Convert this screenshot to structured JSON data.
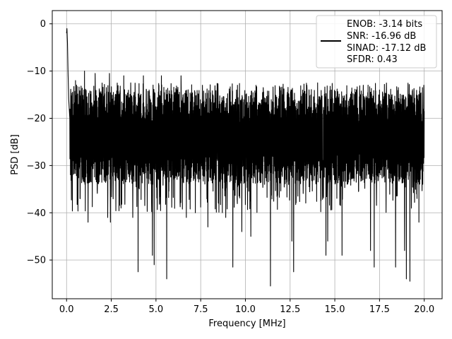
{
  "chart_data": {
    "type": "line",
    "xlabel": "Frequency [MHz]",
    "ylabel": "PSD [dB]",
    "xlim": [
      -0.8,
      21.0
    ],
    "ylim": [
      -58.2,
      2.8
    ],
    "xticks": [
      0.0,
      2.5,
      5.0,
      7.5,
      10.0,
      12.5,
      15.0,
      17.5,
      20.0
    ],
    "xtick_labels": [
      "0.0",
      "2.5",
      "5.0",
      "7.5",
      "10.0",
      "12.5",
      "15.0",
      "17.5",
      "20.0"
    ],
    "yticks": [
      0,
      -10,
      -20,
      -30,
      -40,
      -50
    ],
    "ytick_labels": [
      "0",
      "−10",
      "−20",
      "−30",
      "−40",
      "−50"
    ],
    "grid": true,
    "legend_position": "top-right",
    "legend_entries": [
      "ENOB: -3.14 bits",
      "SNR: -16.96 dB",
      "SINAD: -17.12 dB",
      "SFDR: 0.43"
    ],
    "series": [
      {
        "color": "#000000",
        "x_range": [
          0.0,
          20.0
        ],
        "start": [
          [
            0.0,
            -2.0
          ],
          [
            0.02,
            -1.0
          ],
          [
            0.05,
            -4.0
          ],
          [
            0.08,
            -10.0
          ],
          [
            0.12,
            -16.0
          ],
          [
            0.18,
            -20.0
          ]
        ],
        "typical_band": [
          -34,
          -14
        ],
        "upper_envelope": -12,
        "dips": [
          [
            0.2,
            -27
          ],
          [
            0.75,
            -37
          ],
          [
            1.2,
            -42
          ],
          [
            2.3,
            -41
          ],
          [
            2.45,
            -42
          ],
          [
            3.05,
            -39
          ],
          [
            3.7,
            -41
          ],
          [
            4.0,
            -52.5
          ],
          [
            4.8,
            -49
          ],
          [
            4.9,
            -51
          ],
          [
            5.6,
            -54
          ],
          [
            6.7,
            -41
          ],
          [
            7.2,
            -40
          ],
          [
            7.9,
            -43
          ],
          [
            8.9,
            -41
          ],
          [
            9.3,
            -51.5
          ],
          [
            9.8,
            -44
          ],
          [
            10.3,
            -45
          ],
          [
            11.4,
            -55.5
          ],
          [
            12.6,
            -46
          ],
          [
            12.7,
            -52.5
          ],
          [
            14.5,
            -49
          ],
          [
            14.6,
            -46
          ],
          [
            15.4,
            -49
          ],
          [
            16.2,
            -50
          ],
          [
            17.0,
            -48
          ],
          [
            17.2,
            -51.5
          ],
          [
            18.4,
            -51.5
          ],
          [
            18.9,
            -48
          ],
          [
            19.0,
            -54
          ],
          [
            19.2,
            -54.5
          ],
          [
            19.7,
            -42
          ]
        ],
        "peaks": [
          [
            0.5,
            -12
          ],
          [
            1.0,
            -10
          ],
          [
            1.6,
            -10.5
          ],
          [
            2.4,
            -10.5
          ],
          [
            3.2,
            -11
          ],
          [
            4.3,
            -11
          ],
          [
            5.3,
            -11
          ],
          [
            6.4,
            -11
          ],
          [
            7.6,
            -13
          ],
          [
            9.5,
            -14
          ],
          [
            11.0,
            -13.5
          ],
          [
            13.2,
            -14
          ],
          [
            14.8,
            -14
          ],
          [
            16.2,
            -14
          ],
          [
            17.5,
            -14
          ],
          [
            18.2,
            -15
          ],
          [
            19.9,
            -13.5
          ]
        ]
      }
    ]
  }
}
